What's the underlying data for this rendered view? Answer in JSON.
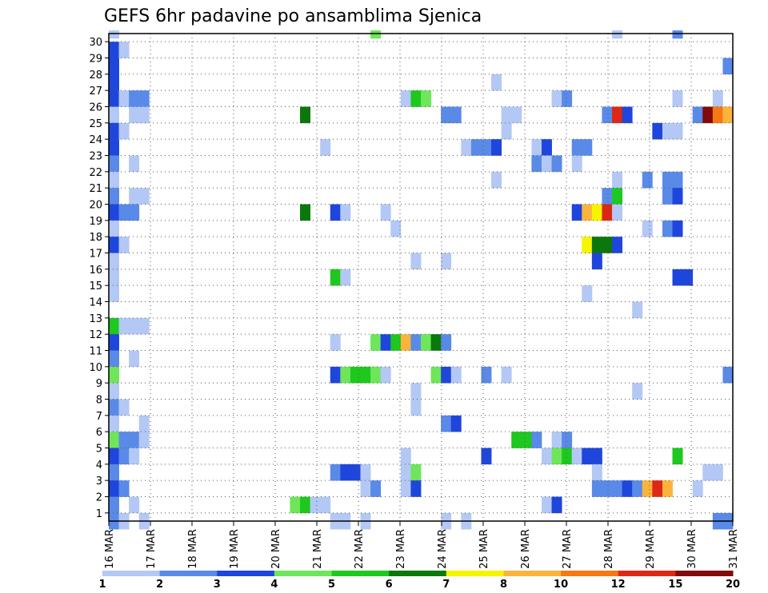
{
  "chart_data": {
    "type": "heatmap",
    "title": "GEFS 6hr padavine po ansamblima Sjenica",
    "xlabel": "",
    "ylabel": "",
    "x_range": [
      0,
      60
    ],
    "y_range": [
      0,
      30
    ],
    "x_tick_labels": [
      "16 MAR",
      "17 MAR",
      "18 MAR",
      "19 MAR",
      "20 MAR",
      "21 MAR",
      "22 MAR",
      "23 MAR",
      "24 MAR",
      "25 MAR",
      "26 MAR",
      "27 MAR",
      "28 MAR",
      "29 MAR",
      "30 MAR",
      "31 MAR"
    ],
    "y_tick_labels": [
      "1",
      "2",
      "3",
      "4",
      "5",
      "6",
      "7",
      "8",
      "9",
      "10",
      "11",
      "12",
      "13",
      "14",
      "15",
      "16",
      "17",
      "18",
      "19",
      "20",
      "21",
      "22",
      "23",
      "24",
      "25",
      "26",
      "27",
      "28",
      "29",
      "30"
    ],
    "grid": true,
    "colorbar": {
      "labels": [
        "1",
        "2",
        "3",
        "4",
        "5",
        "6",
        "7",
        "8",
        "10",
        "12",
        "15",
        "20"
      ],
      "colors": [
        "#b4c8f5",
        "#5a8ae8",
        "#1e46dc",
        "#6ee65a",
        "#1ec81e",
        "#0a780a",
        "#f5f500",
        "#fab43c",
        "#f57814",
        "#dc2814",
        "#820a0a"
      ]
    },
    "cells": [
      [
        0,
        30,
        1
      ],
      [
        0,
        29,
        3
      ],
      [
        0,
        28,
        3
      ],
      [
        0,
        27,
        3
      ],
      [
        0,
        26,
        3
      ],
      [
        0,
        25,
        1
      ],
      [
        0,
        24,
        3
      ],
      [
        0,
        23,
        3
      ],
      [
        0,
        22,
        2
      ],
      [
        0,
        21,
        1
      ],
      [
        0,
        20,
        2
      ],
      [
        0,
        19,
        3
      ],
      [
        0,
        18,
        1
      ],
      [
        0,
        17,
        3
      ],
      [
        0,
        16,
        1
      ],
      [
        0,
        15,
        1
      ],
      [
        0,
        14,
        1
      ],
      [
        0,
        12,
        5
      ],
      [
        0,
        11,
        3
      ],
      [
        0,
        10,
        2
      ],
      [
        0,
        9,
        4
      ],
      [
        0,
        8,
        1
      ],
      [
        0,
        7,
        2
      ],
      [
        0,
        6,
        1
      ],
      [
        0,
        5,
        4
      ],
      [
        0,
        4,
        3
      ],
      [
        0,
        3,
        2
      ],
      [
        0,
        2,
        3
      ],
      [
        0,
        1,
        2
      ],
      [
        0,
        0,
        2
      ],
      [
        1,
        29,
        1
      ],
      [
        1,
        26,
        1
      ],
      [
        1,
        24,
        1
      ],
      [
        1,
        19,
        2
      ],
      [
        1,
        17,
        1
      ],
      [
        1,
        12,
        1
      ],
      [
        1,
        7,
        1
      ],
      [
        1,
        5,
        2
      ],
      [
        1,
        4,
        2
      ],
      [
        1,
        2,
        2
      ],
      [
        1,
        0,
        1
      ],
      [
        2,
        26,
        2
      ],
      [
        2,
        25,
        1
      ],
      [
        2,
        22,
        1
      ],
      [
        2,
        20,
        1
      ],
      [
        2,
        19,
        2
      ],
      [
        2,
        12,
        1
      ],
      [
        2,
        10,
        1
      ],
      [
        2,
        5,
        2
      ],
      [
        2,
        4,
        1
      ],
      [
        2,
        1,
        1
      ],
      [
        3,
        26,
        2
      ],
      [
        3,
        25,
        1
      ],
      [
        3,
        20,
        1
      ],
      [
        3,
        12,
        1
      ],
      [
        3,
        6,
        1
      ],
      [
        3,
        5,
        1
      ],
      [
        3,
        0,
        1
      ],
      [
        18,
        1,
        4
      ],
      [
        19,
        1,
        5
      ],
      [
        19,
        25,
        6
      ],
      [
        19,
        19,
        6
      ],
      [
        20,
        1,
        1
      ],
      [
        21,
        1,
        1
      ],
      [
        21,
        23,
        1
      ],
      [
        22,
        19,
        3
      ],
      [
        22,
        15,
        5
      ],
      [
        22,
        11,
        1
      ],
      [
        22,
        9,
        3
      ],
      [
        22,
        3,
        2
      ],
      [
        22,
        0,
        1
      ],
      [
        23,
        19,
        1
      ],
      [
        23,
        15,
        1
      ],
      [
        23,
        9,
        4
      ],
      [
        23,
        3,
        3
      ],
      [
        23,
        0,
        1
      ],
      [
        24,
        9,
        5
      ],
      [
        24,
        3,
        3
      ],
      [
        25,
        9,
        5
      ],
      [
        25,
        3,
        1
      ],
      [
        25,
        2,
        1
      ],
      [
        25,
        0,
        1
      ],
      [
        26,
        30,
        4
      ],
      [
        26,
        11,
        4
      ],
      [
        26,
        9,
        4
      ],
      [
        26,
        2,
        2
      ],
      [
        27,
        19,
        1
      ],
      [
        27,
        11,
        3
      ],
      [
        27,
        9,
        1
      ],
      [
        28,
        18,
        1
      ],
      [
        28,
        11,
        5
      ],
      [
        29,
        26,
        1
      ],
      [
        29,
        11,
        8
      ],
      [
        29,
        4,
        1
      ],
      [
        29,
        3,
        1
      ],
      [
        29,
        2,
        1
      ],
      [
        30,
        26,
        5
      ],
      [
        30,
        16,
        1
      ],
      [
        30,
        11,
        2
      ],
      [
        30,
        8,
        1
      ],
      [
        30,
        7,
        1
      ],
      [
        30,
        3,
        4
      ],
      [
        30,
        2,
        3
      ],
      [
        31,
        26,
        4
      ],
      [
        31,
        11,
        4
      ],
      [
        32,
        11,
        6
      ],
      [
        32,
        9,
        4
      ],
      [
        33,
        25,
        2
      ],
      [
        33,
        16,
        1
      ],
      [
        33,
        11,
        2
      ],
      [
        33,
        9,
        3
      ],
      [
        33,
        6,
        2
      ],
      [
        33,
        0,
        1
      ],
      [
        34,
        25,
        2
      ],
      [
        34,
        9,
        1
      ],
      [
        34,
        6,
        3
      ],
      [
        35,
        23,
        1
      ],
      [
        35,
        0,
        1
      ],
      [
        36,
        23,
        2
      ],
      [
        37,
        23,
        2
      ],
      [
        37,
        9,
        2
      ],
      [
        37,
        4,
        3
      ],
      [
        38,
        27,
        1
      ],
      [
        38,
        23,
        3
      ],
      [
        38,
        21,
        1
      ],
      [
        39,
        25,
        1
      ],
      [
        39,
        24,
        1
      ],
      [
        39,
        9,
        1
      ],
      [
        40,
        25,
        1
      ],
      [
        40,
        5,
        5
      ],
      [
        41,
        5,
        5
      ],
      [
        42,
        23,
        1
      ],
      [
        42,
        22,
        2
      ],
      [
        42,
        5,
        2
      ],
      [
        43,
        23,
        3
      ],
      [
        43,
        22,
        1
      ],
      [
        43,
        4,
        1
      ],
      [
        43,
        1,
        1
      ],
      [
        44,
        26,
        1
      ],
      [
        44,
        22,
        2
      ],
      [
        44,
        5,
        1
      ],
      [
        44,
        4,
        4
      ],
      [
        44,
        1,
        3
      ],
      [
        45,
        26,
        2
      ],
      [
        45,
        5,
        2
      ],
      [
        45,
        4,
        5
      ],
      [
        46,
        23,
        2
      ],
      [
        46,
        22,
        1
      ],
      [
        46,
        19,
        3
      ],
      [
        46,
        4,
        1
      ],
      [
        47,
        23,
        2
      ],
      [
        47,
        19,
        8
      ],
      [
        47,
        17,
        7
      ],
      [
        47,
        14,
        1
      ],
      [
        47,
        4,
        3
      ],
      [
        48,
        19,
        7
      ],
      [
        48,
        17,
        6
      ],
      [
        48,
        16,
        3
      ],
      [
        48,
        4,
        3
      ],
      [
        48,
        3,
        1
      ],
      [
        48,
        2,
        2
      ],
      [
        49,
        25,
        2
      ],
      [
        49,
        20,
        2
      ],
      [
        49,
        19,
        10
      ],
      [
        49,
        17,
        6
      ],
      [
        49,
        2,
        2
      ],
      [
        50,
        30,
        1
      ],
      [
        50,
        25,
        10
      ],
      [
        50,
        21,
        1
      ],
      [
        50,
        20,
        5
      ],
      [
        50,
        19,
        1
      ],
      [
        50,
        17,
        3
      ],
      [
        50,
        2,
        2
      ],
      [
        51,
        25,
        3
      ],
      [
        51,
        2,
        3
      ],
      [
        52,
        13,
        1
      ],
      [
        52,
        8,
        1
      ],
      [
        52,
        2,
        2
      ],
      [
        53,
        21,
        2
      ],
      [
        53,
        18,
        1
      ],
      [
        53,
        2,
        8
      ],
      [
        54,
        24,
        3
      ],
      [
        54,
        2,
        10
      ],
      [
        55,
        24,
        1
      ],
      [
        55,
        21,
        2
      ],
      [
        55,
        20,
        2
      ],
      [
        55,
        18,
        2
      ],
      [
        55,
        2,
        8
      ],
      [
        56,
        30,
        2
      ],
      [
        56,
        26,
        1
      ],
      [
        56,
        24,
        1
      ],
      [
        56,
        21,
        2
      ],
      [
        56,
        20,
        3
      ],
      [
        56,
        18,
        3
      ],
      [
        56,
        15,
        3
      ],
      [
        56,
        4,
        5
      ],
      [
        57,
        15,
        3
      ],
      [
        58,
        25,
        2
      ],
      [
        58,
        2,
        1
      ],
      [
        59,
        25,
        11
      ],
      [
        59,
        3,
        1
      ],
      [
        60,
        26,
        1
      ],
      [
        60,
        25,
        9
      ],
      [
        60,
        3,
        1
      ],
      [
        60,
        0,
        2
      ],
      [
        61,
        25,
        8
      ],
      [
        61,
        28,
        2
      ],
      [
        61,
        9,
        2
      ],
      [
        61,
        0,
        2
      ]
    ]
  }
}
